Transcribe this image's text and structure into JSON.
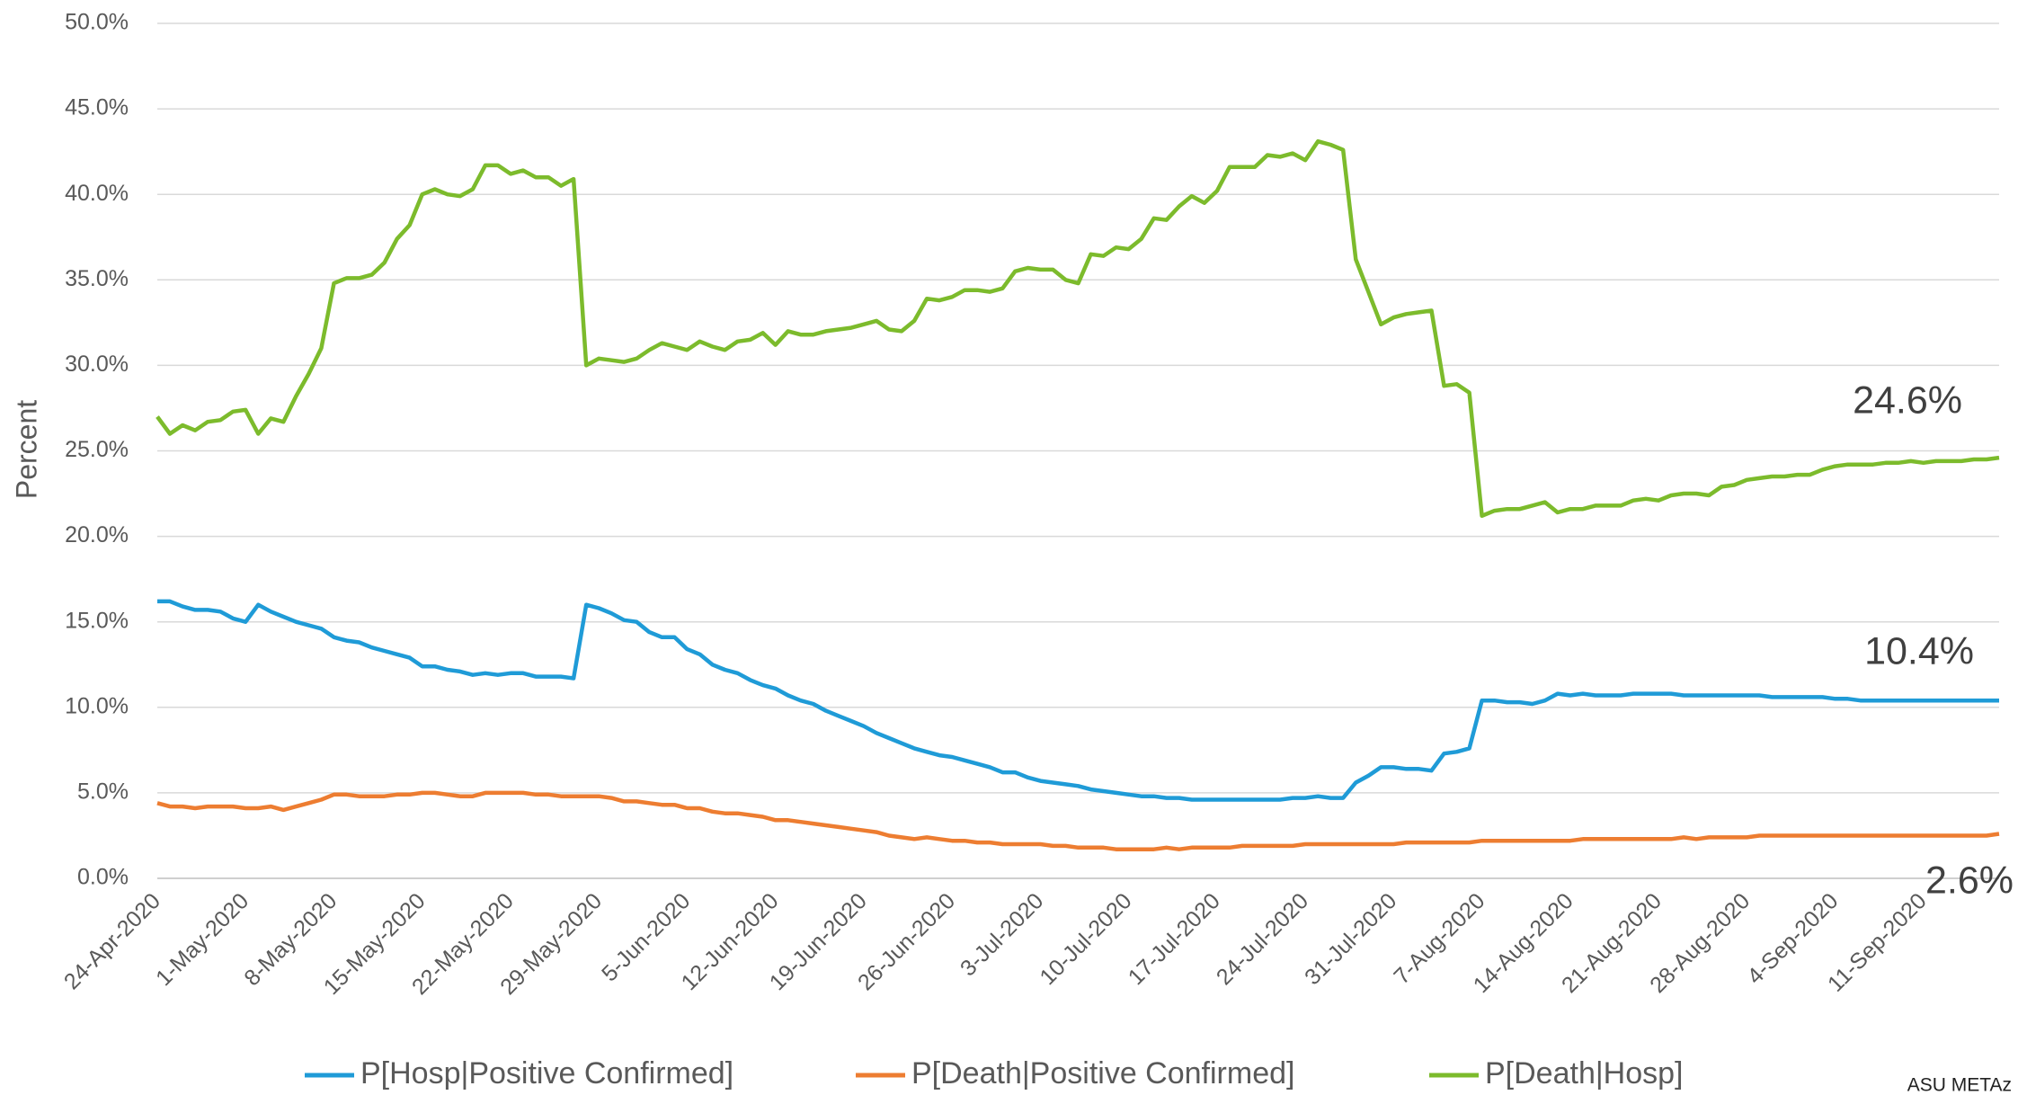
{
  "chart_data": {
    "type": "line",
    "y_label": "Percent",
    "credit": "ASU METAz",
    "ylim": [
      0,
      50
    ],
    "yticks": [
      {
        "value": 0,
        "label": "0.0%"
      },
      {
        "value": 5,
        "label": "5.0%"
      },
      {
        "value": 10,
        "label": "10.0%"
      },
      {
        "value": 15,
        "label": "15.0%"
      },
      {
        "value": 20,
        "label": "20.0%"
      },
      {
        "value": 25,
        "label": "25.0%"
      },
      {
        "value": 30,
        "label": "30.0%"
      },
      {
        "value": 35,
        "label": "35.0%"
      },
      {
        "value": 40,
        "label": "40.0%"
      },
      {
        "value": 45,
        "label": "45.0%"
      },
      {
        "value": 50,
        "label": "50.0%"
      }
    ],
    "grid": true,
    "legend": "bottom",
    "categories": [
      "24-Apr-2020",
      null,
      null,
      null,
      null,
      null,
      null,
      "1-May-2020",
      null,
      null,
      null,
      null,
      null,
      null,
      "8-May-2020",
      null,
      null,
      null,
      null,
      null,
      null,
      "15-May-2020",
      null,
      null,
      null,
      null,
      null,
      null,
      "22-May-2020",
      null,
      null,
      null,
      null,
      null,
      null,
      "29-May-2020",
      null,
      null,
      null,
      null,
      null,
      null,
      "5-Jun-2020",
      null,
      null,
      null,
      null,
      null,
      null,
      "12-Jun-2020",
      null,
      null,
      null,
      null,
      null,
      null,
      "19-Jun-2020",
      null,
      null,
      null,
      null,
      null,
      null,
      "26-Jun-2020",
      null,
      null,
      null,
      null,
      null,
      null,
      "3-Jul-2020",
      null,
      null,
      null,
      null,
      null,
      null,
      "10-Jul-2020",
      null,
      null,
      null,
      null,
      null,
      null,
      "17-Jul-2020",
      null,
      null,
      null,
      null,
      null,
      null,
      "24-Jul-2020",
      null,
      null,
      null,
      null,
      null,
      null,
      "31-Jul-2020",
      null,
      null,
      null,
      null,
      null,
      null,
      "7-Aug-2020",
      null,
      null,
      null,
      null,
      null,
      null,
      "14-Aug-2020",
      null,
      null,
      null,
      null,
      null,
      null,
      "21-Aug-2020",
      null,
      null,
      null,
      null,
      null,
      null,
      "28-Aug-2020",
      null,
      null,
      null,
      null,
      null,
      null,
      "4-Sep-2020",
      null,
      null,
      null,
      null,
      null,
      null,
      "11-Sep-2020",
      null,
      null,
      null,
      null,
      null,
      null
    ],
    "series": [
      {
        "name": "P[Hosp|Positive Confirmed]",
        "color": "#1f9bd7",
        "end_label": "10.4%",
        "values": [
          16.2,
          16.2,
          15.9,
          15.7,
          15.7,
          15.6,
          15.2,
          15.0,
          16.0,
          15.6,
          15.3,
          15.0,
          14.8,
          14.6,
          14.1,
          13.9,
          13.8,
          13.5,
          13.3,
          13.1,
          12.9,
          12.4,
          12.4,
          12.2,
          12.1,
          11.9,
          12.0,
          11.9,
          12.0,
          12.0,
          11.8,
          11.8,
          11.8,
          11.7,
          16.0,
          15.8,
          15.5,
          15.1,
          15.0,
          14.4,
          14.1,
          14.1,
          13.4,
          13.1,
          12.5,
          12.2,
          12.0,
          11.6,
          11.3,
          11.1,
          10.7,
          10.4,
          10.2,
          9.8,
          9.5,
          9.2,
          8.9,
          8.5,
          8.2,
          7.9,
          7.6,
          7.4,
          7.2,
          7.1,
          6.9,
          6.7,
          6.5,
          6.2,
          6.2,
          5.9,
          5.7,
          5.6,
          5.5,
          5.4,
          5.2,
          5.1,
          5.0,
          4.9,
          4.8,
          4.8,
          4.7,
          4.7,
          4.6,
          4.6,
          4.6,
          4.6,
          4.6,
          4.6,
          4.6,
          4.6,
          4.7,
          4.7,
          4.8,
          4.7,
          4.7,
          5.6,
          6.0,
          6.5,
          6.5,
          6.4,
          6.4,
          6.3,
          7.3,
          7.4,
          7.6,
          10.4,
          10.4,
          10.3,
          10.3,
          10.2,
          10.4,
          10.8,
          10.7,
          10.8,
          10.7,
          10.7,
          10.7,
          10.8,
          10.8,
          10.8,
          10.8,
          10.7,
          10.7,
          10.7,
          10.7,
          10.7,
          10.7,
          10.7,
          10.6,
          10.6,
          10.6,
          10.6,
          10.6,
          10.5,
          10.5,
          10.4,
          10.4,
          10.4,
          10.4,
          10.4,
          10.4,
          10.4,
          10.4,
          10.4,
          10.4,
          10.4,
          10.4
        ]
      },
      {
        "name": "P[Death|Positive Confirmed]",
        "color": "#ed7d31",
        "end_label": "2.6%",
        "values": [
          4.4,
          4.2,
          4.2,
          4.1,
          4.2,
          4.2,
          4.2,
          4.1,
          4.1,
          4.2,
          4.0,
          4.2,
          4.4,
          4.6,
          4.9,
          4.9,
          4.8,
          4.8,
          4.8,
          4.9,
          4.9,
          5.0,
          5.0,
          4.9,
          4.8,
          4.8,
          5.0,
          5.0,
          5.0,
          5.0,
          4.9,
          4.9,
          4.8,
          4.8,
          4.8,
          4.8,
          4.7,
          4.5,
          4.5,
          4.4,
          4.3,
          4.3,
          4.1,
          4.1,
          3.9,
          3.8,
          3.8,
          3.7,
          3.6,
          3.4,
          3.4,
          3.3,
          3.2,
          3.1,
          3.0,
          2.9,
          2.8,
          2.7,
          2.5,
          2.4,
          2.3,
          2.4,
          2.3,
          2.2,
          2.2,
          2.1,
          2.1,
          2.0,
          2.0,
          2.0,
          2.0,
          1.9,
          1.9,
          1.8,
          1.8,
          1.8,
          1.7,
          1.7,
          1.7,
          1.7,
          1.8,
          1.7,
          1.8,
          1.8,
          1.8,
          1.8,
          1.9,
          1.9,
          1.9,
          1.9,
          1.9,
          2.0,
          2.0,
          2.0,
          2.0,
          2.0,
          2.0,
          2.0,
          2.0,
          2.1,
          2.1,
          2.1,
          2.1,
          2.1,
          2.1,
          2.2,
          2.2,
          2.2,
          2.2,
          2.2,
          2.2,
          2.2,
          2.2,
          2.3,
          2.3,
          2.3,
          2.3,
          2.3,
          2.3,
          2.3,
          2.3,
          2.4,
          2.3,
          2.4,
          2.4,
          2.4,
          2.4,
          2.5,
          2.5,
          2.5,
          2.5,
          2.5,
          2.5,
          2.5,
          2.5,
          2.5,
          2.5,
          2.5,
          2.5,
          2.5,
          2.5,
          2.5,
          2.5,
          2.5,
          2.5,
          2.5,
          2.6
        ]
      },
      {
        "name": "P[Death|Hosp]",
        "color": "#7cbb2c",
        "end_label": "24.6%",
        "values": [
          27.0,
          26.0,
          26.5,
          26.2,
          26.7,
          26.8,
          27.3,
          27.4,
          26.0,
          26.9,
          26.7,
          28.2,
          29.5,
          31.0,
          34.8,
          35.1,
          35.1,
          35.3,
          36.0,
          37.4,
          38.2,
          40.0,
          40.3,
          40.0,
          39.9,
          40.3,
          41.7,
          41.7,
          41.2,
          41.4,
          41.0,
          41.0,
          40.5,
          40.9,
          30.0,
          30.4,
          30.3,
          30.2,
          30.4,
          30.9,
          31.3,
          31.1,
          30.9,
          31.4,
          31.1,
          30.9,
          31.4,
          31.5,
          31.9,
          31.2,
          32.0,
          31.8,
          31.8,
          32.0,
          32.1,
          32.2,
          32.4,
          32.6,
          32.1,
          32.0,
          32.6,
          33.9,
          33.8,
          34.0,
          34.4,
          34.4,
          34.3,
          34.5,
          35.5,
          35.7,
          35.6,
          35.6,
          35.0,
          34.8,
          36.5,
          36.4,
          36.9,
          36.8,
          37.4,
          38.6,
          38.5,
          39.3,
          39.9,
          39.5,
          40.2,
          41.6,
          41.6,
          41.6,
          42.3,
          42.2,
          42.4,
          42.0,
          43.1,
          42.9,
          42.6,
          36.2,
          34.3,
          32.4,
          32.8,
          33.0,
          33.1,
          33.2,
          28.8,
          28.9,
          28.4,
          21.2,
          21.5,
          21.6,
          21.6,
          21.8,
          22.0,
          21.4,
          21.6,
          21.6,
          21.8,
          21.8,
          21.8,
          22.1,
          22.2,
          22.1,
          22.4,
          22.5,
          22.5,
          22.4,
          22.9,
          23.0,
          23.3,
          23.4,
          23.5,
          23.5,
          23.6,
          23.6,
          23.9,
          24.1,
          24.2,
          24.2,
          24.2,
          24.3,
          24.3,
          24.4,
          24.3,
          24.4,
          24.4,
          24.4,
          24.5,
          24.5,
          24.6
        ]
      }
    ]
  }
}
